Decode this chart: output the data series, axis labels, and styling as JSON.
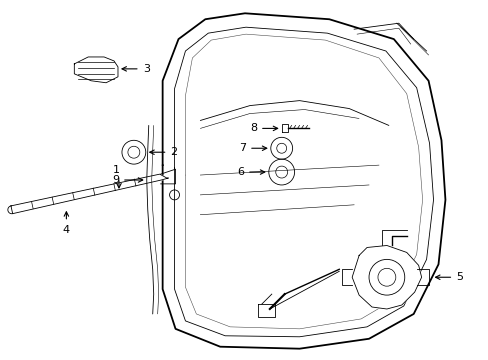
{
  "bg_color": "#ffffff",
  "line_color": "#000000",
  "fig_width": 4.89,
  "fig_height": 3.6,
  "dpi": 100,
  "lw": 1.0,
  "tlw": 0.6
}
